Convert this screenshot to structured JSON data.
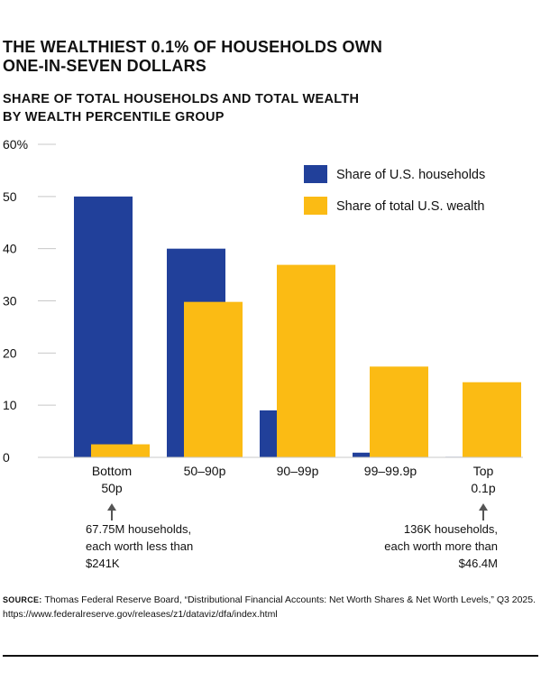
{
  "header": {
    "title_line1": "THE WEALTHIEST 0.1% OF HOUSEHOLDS OWN",
    "title_line2": "ONE-IN-SEVEN DOLLARS",
    "subtitle_line1": "SHARE OF TOTAL HOUSEHOLDS AND TOTAL WEALTH",
    "subtitle_line2": "BY WEALTH PERCENTILE GROUP"
  },
  "chart_data": {
    "type": "bar",
    "categories": [
      "Bottom 50p",
      "50–90p",
      "90–99p",
      "99–99.9p",
      "Top 0.1p"
    ],
    "category_lines": [
      [
        "Bottom",
        "50p"
      ],
      [
        "50–90p"
      ],
      [
        "90–99p"
      ],
      [
        "99–99.9p"
      ],
      [
        "Top",
        "0.1p"
      ]
    ],
    "series": [
      {
        "name": "Share of U.S. households",
        "color": "#21409a",
        "values": [
          50,
          40,
          9,
          0.9,
          0.1
        ]
      },
      {
        "name": "Share of total U.S. wealth",
        "color": "#fbbb14",
        "values": [
          2.5,
          29.8,
          36.9,
          17.4,
          14.4
        ]
      }
    ],
    "y_ticks": [
      "0",
      "10",
      "20",
      "30",
      "40",
      "50",
      "60%"
    ],
    "y_tick_values": [
      0,
      10,
      20,
      30,
      40,
      50,
      60
    ],
    "ylim": [
      0,
      60
    ],
    "grid": false,
    "legend_position": "top-right",
    "annotations": [
      {
        "category_index": 0,
        "lines": [
          "67.75M households,",
          "each worth less than",
          "$241K"
        ],
        "align": "left"
      },
      {
        "category_index": 4,
        "lines": [
          "136K households,",
          "each worth more than",
          "$46.4M"
        ],
        "align": "right"
      }
    ]
  },
  "source": {
    "label": "SOURCE:",
    "text": " Thomas Federal Reserve Board, “Distributional Financial Accounts: Net Worth Shares & Net Worth Levels,” Q3 2025.  https://www.federalreserve.gov/releases/z1/dataviz/dfa/index.html"
  }
}
